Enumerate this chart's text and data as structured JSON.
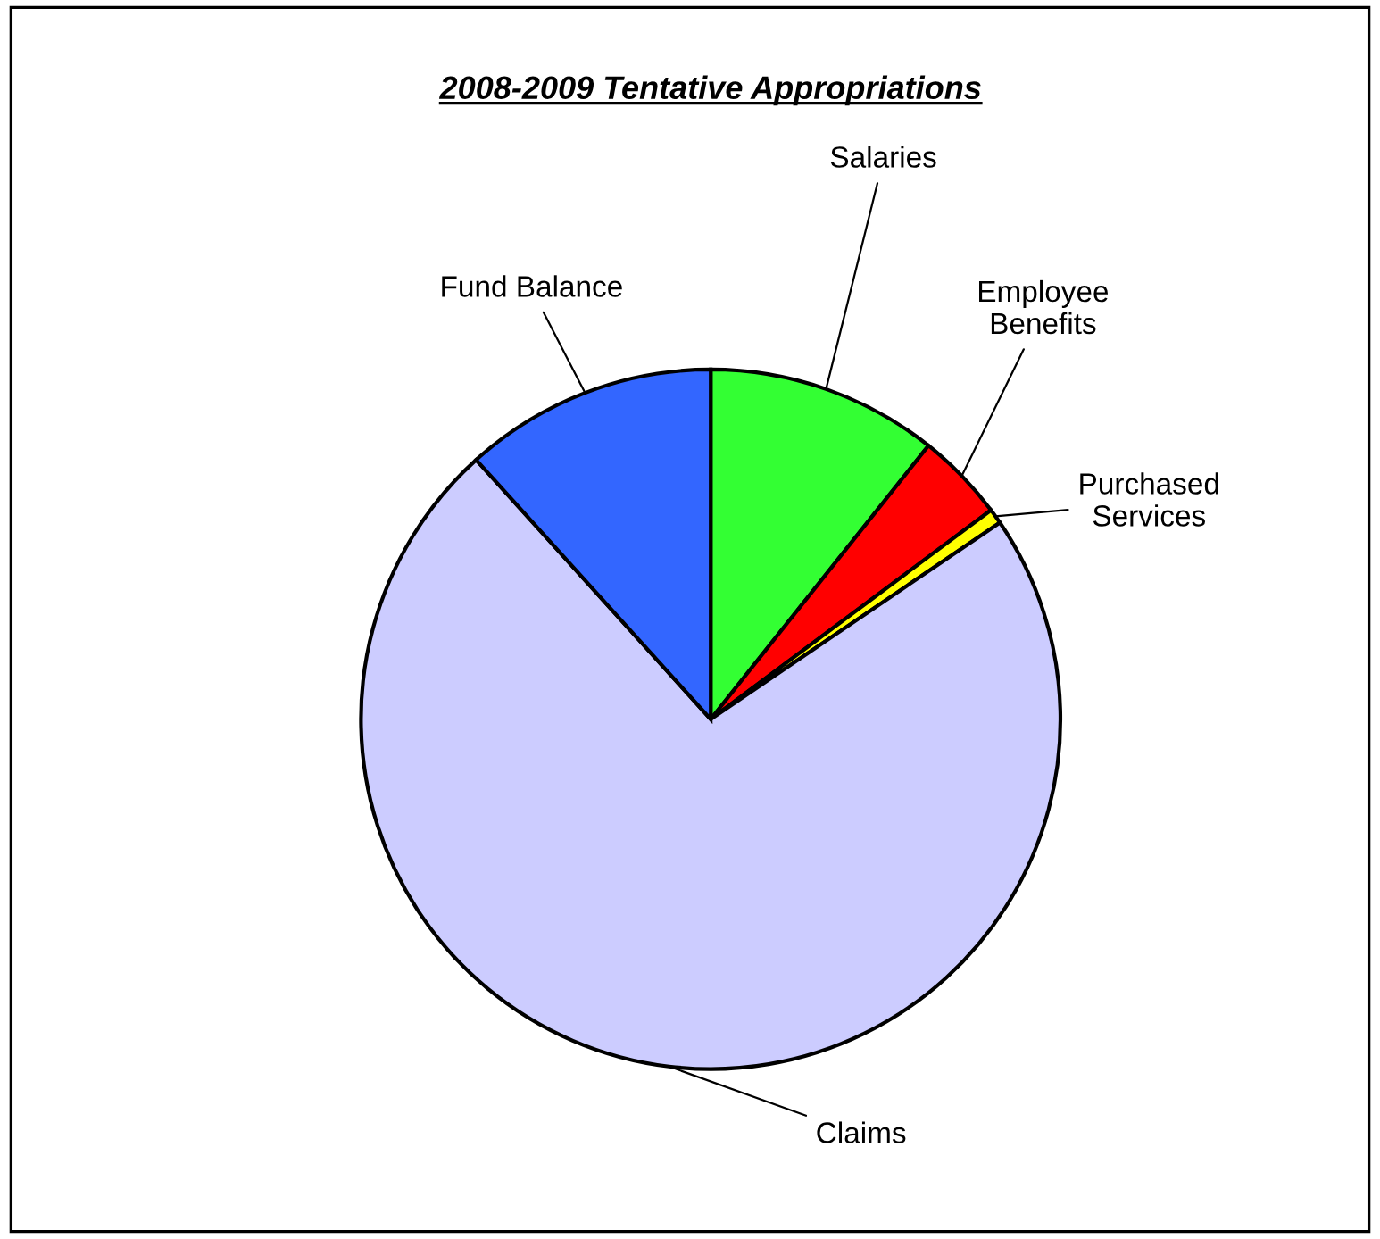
{
  "chart_data": {
    "type": "pie",
    "title": "2008-2009 Tentative Appropriations",
    "categories": [
      "Salaries",
      "Employee\nBenefits",
      "Purchased\nServices",
      "Claims",
      "Fund Balance"
    ],
    "values": [
      10.7,
      4.1,
      0.7,
      72.8,
      11.7
    ],
    "colors": [
      "#33ff33",
      "#ff0000",
      "#ffff00",
      "#ccccff",
      "#3366ff"
    ],
    "legend": false
  }
}
